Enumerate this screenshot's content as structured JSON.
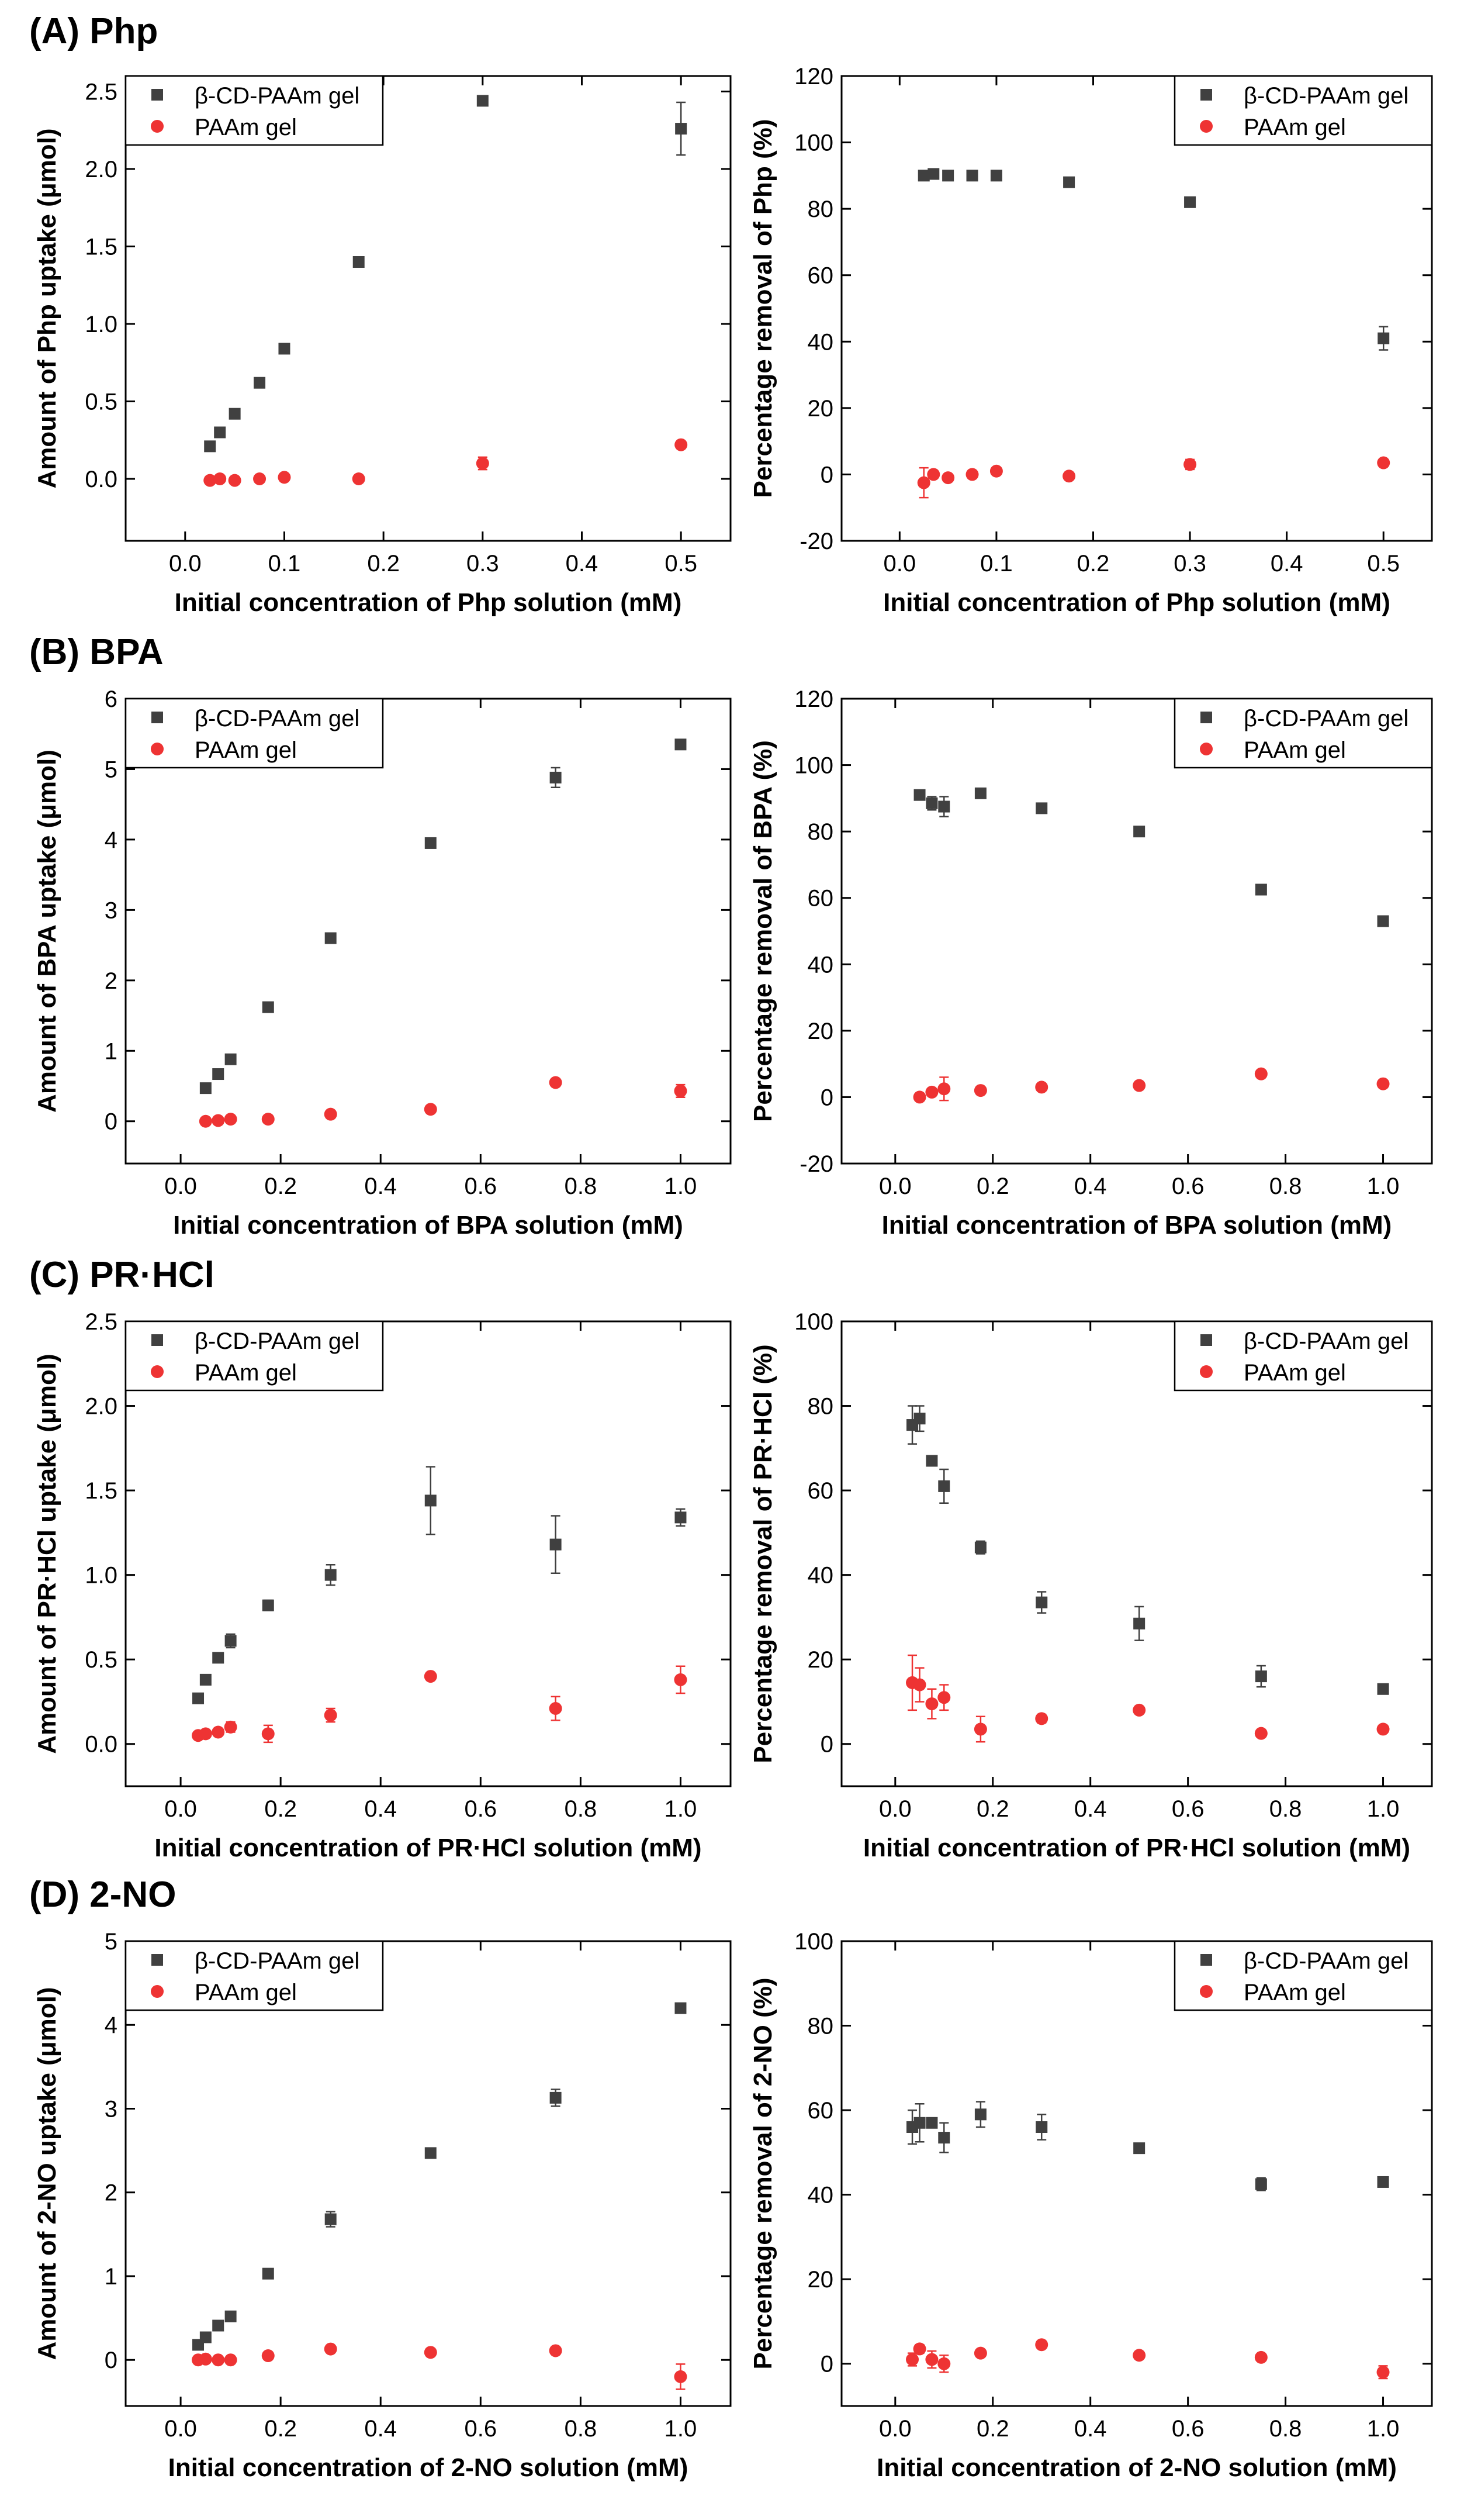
{
  "sections": [
    {
      "label": "(A) Php"
    },
    {
      "label": "(B) BPA"
    },
    {
      "label": "(C) PR·HCl"
    },
    {
      "label": "(D) 2-NO"
    }
  ],
  "colors": {
    "cd_gel": "#404040",
    "paam_gel": "#ee3333"
  },
  "legend": {
    "series1": "β-CD-PAAm gel",
    "series2": "PAAm gel"
  },
  "chart_data": [
    {
      "type": "scatter",
      "xlabel": "Initial concentration of Php solution (mM)",
      "ylabel": "Amount of Php uptake (μmol)",
      "xlim": [
        -0.06,
        0.55
      ],
      "ylim": [
        -0.4,
        2.6
      ],
      "xticks": [
        "0.0",
        "0.1",
        "0.2",
        "0.3",
        "0.4",
        "0.5"
      ],
      "yticks": [
        "0.0",
        "0.5",
        "1.0",
        "1.5",
        "2.0",
        "2.5"
      ],
      "legend_position": "top-left",
      "series": [
        {
          "name": "β-CD-PAAm gel",
          "marker": "square",
          "x": [
            0.025,
            0.035,
            0.05,
            0.075,
            0.1,
            0.175,
            0.3,
            0.5
          ],
          "y": [
            0.21,
            0.3,
            0.42,
            0.62,
            0.84,
            1.4,
            2.44,
            2.26
          ],
          "err": [
            0.01,
            0.01,
            0.01,
            0.01,
            0.01,
            0.01,
            0.03,
            0.17
          ]
        },
        {
          "name": "PAAm gel",
          "marker": "circle",
          "x": [
            0.025,
            0.035,
            0.05,
            0.075,
            0.1,
            0.175,
            0.3,
            0.5
          ],
          "y": [
            -0.01,
            0.0,
            -0.01,
            0.0,
            0.01,
            0.0,
            0.1,
            0.22
          ],
          "err": [
            0.01,
            0.01,
            0.01,
            0.01,
            0.01,
            0.01,
            0.04,
            0.01
          ]
        }
      ]
    },
    {
      "type": "scatter",
      "xlabel": "Initial concentration of Php solution (mM)",
      "ylabel": "Percentage removal of Php (%)",
      "xlim": [
        -0.06,
        0.55
      ],
      "ylim": [
        -20,
        120
      ],
      "xticks": [
        "0.0",
        "0.1",
        "0.2",
        "0.3",
        "0.4",
        "0.5"
      ],
      "yticks": [
        "-20",
        "0",
        "20",
        "40",
        "60",
        "80",
        "100",
        "120"
      ],
      "legend_position": "top-right",
      "series": [
        {
          "name": "β-CD-PAAm gel",
          "marker": "square",
          "x": [
            0.025,
            0.035,
            0.05,
            0.075,
            0.1,
            0.175,
            0.3,
            0.5
          ],
          "y": [
            90,
            90.5,
            90,
            90,
            90,
            88,
            82,
            41
          ],
          "err": [
            0.5,
            0.5,
            0.5,
            0.5,
            0.5,
            0.5,
            0.5,
            3.5
          ]
        },
        {
          "name": "PAAm gel",
          "marker": "circle",
          "x": [
            0.025,
            0.035,
            0.05,
            0.075,
            0.1,
            0.175,
            0.3,
            0.5
          ],
          "y": [
            -2.5,
            0,
            -1,
            0,
            1,
            -0.5,
            3,
            3.5
          ],
          "err": [
            4.5,
            1,
            0.5,
            0.5,
            1,
            0.5,
            1.5,
            0.5
          ]
        }
      ]
    },
    {
      "type": "scatter",
      "xlabel": "Initial concentration of BPA solution (mM)",
      "ylabel": "Amount of BPA uptake (μmol)",
      "xlim": [
        -0.11,
        1.1
      ],
      "ylim": [
        -0.6,
        6
      ],
      "xticks": [
        "0.0",
        "0.2",
        "0.4",
        "0.6",
        "0.8",
        "1.0"
      ],
      "yticks": [
        "0",
        "1",
        "2",
        "3",
        "4",
        "5",
        "6"
      ],
      "legend_position": "top-left",
      "series": [
        {
          "name": "β-CD-PAAm gel",
          "marker": "square",
          "x": [
            0.05,
            0.075,
            0.1,
            0.175,
            0.3,
            0.5,
            0.75,
            1.0
          ],
          "y": [
            0.47,
            0.67,
            0.88,
            1.62,
            2.6,
            3.95,
            4.88,
            5.35
          ],
          "err": [
            0.02,
            0.02,
            0.02,
            0.02,
            0.02,
            0.07,
            0.14,
            0.03
          ]
        },
        {
          "name": "PAAm gel",
          "marker": "circle",
          "x": [
            0.05,
            0.075,
            0.1,
            0.175,
            0.3,
            0.5,
            0.75,
            1.0
          ],
          "y": [
            0.0,
            0.01,
            0.03,
            0.03,
            0.1,
            0.17,
            0.55,
            0.43
          ],
          "err": [
            0.02,
            0.02,
            0.04,
            0.03,
            0.03,
            0.03,
            0.04,
            0.09
          ]
        }
      ]
    },
    {
      "type": "scatter",
      "xlabel": "Initial concentration of BPA solution (mM)",
      "ylabel": "Percentage removal of BPA (%)",
      "xlim": [
        -0.11,
        1.1
      ],
      "ylim": [
        -20,
        120
      ],
      "xticks": [
        "0.0",
        "0.2",
        "0.4",
        "0.6",
        "0.8",
        "1.0"
      ],
      "yticks": [
        "-20",
        "0",
        "20",
        "40",
        "60",
        "80",
        "100",
        "120"
      ],
      "legend_position": "top-right",
      "series": [
        {
          "name": "β-CD-PAAm gel",
          "marker": "square",
          "x": [
            0.05,
            0.075,
            0.1,
            0.175,
            0.3,
            0.5,
            0.75,
            1.0
          ],
          "y": [
            91,
            88.5,
            87.5,
            91.5,
            87,
            80,
            62.5,
            53
          ],
          "err": [
            1,
            2,
            3,
            1,
            1,
            1,
            1.5,
            0.5
          ]
        },
        {
          "name": "PAAm gel",
          "marker": "circle",
          "x": [
            0.05,
            0.075,
            0.1,
            0.175,
            0.3,
            0.5,
            0.75,
            1.0
          ],
          "y": [
            0,
            1.5,
            2.5,
            2,
            3,
            3.5,
            7,
            4
          ],
          "err": [
            0.5,
            1,
            3.5,
            1,
            0.5,
            0.5,
            1,
            0.5
          ]
        }
      ]
    },
    {
      "type": "scatter",
      "xlabel": "Initial concentration of PR·HCl solution (mM)",
      "ylabel": "Amount of PR·HCl uptake (μmol)",
      "xlim": [
        -0.11,
        1.1
      ],
      "ylim": [
        -0.25,
        2.5
      ],
      "xticks": [
        "0.0",
        "0.2",
        "0.4",
        "0.6",
        "0.8",
        "1.0"
      ],
      "yticks": [
        "0.0",
        "0.5",
        "1.0",
        "1.5",
        "2.0",
        "2.5"
      ],
      "legend_position": "top-left",
      "series": [
        {
          "name": "β-CD-PAAm gel",
          "marker": "square",
          "x": [
            0.035,
            0.05,
            0.075,
            0.1,
            0.175,
            0.3,
            0.5,
            0.75,
            1.0
          ],
          "y": [
            0.27,
            0.38,
            0.51,
            0.61,
            0.82,
            1.0,
            1.44,
            1.18,
            1.34
          ],
          "err": [
            0.01,
            0.01,
            0.01,
            0.04,
            0.03,
            0.06,
            0.2,
            0.17,
            0.05
          ]
        },
        {
          "name": "PAAm gel",
          "marker": "circle",
          "x": [
            0.035,
            0.05,
            0.075,
            0.1,
            0.175,
            0.3,
            0.5,
            0.75,
            1.0
          ],
          "y": [
            0.05,
            0.06,
            0.07,
            0.1,
            0.06,
            0.17,
            0.4,
            0.21,
            0.38
          ],
          "err": [
            0.01,
            0.02,
            0.02,
            0.03,
            0.05,
            0.04,
            0.02,
            0.07,
            0.08
          ]
        }
      ]
    },
    {
      "type": "scatter",
      "xlabel": "Initial concentration of PR·HCl solution (mM)",
      "ylabel": "Percentage removal of PR·HCl (%)",
      "xlim": [
        -0.11,
        1.1
      ],
      "ylim": [
        -10,
        100
      ],
      "xticks": [
        "0.0",
        "0.2",
        "0.4",
        "0.6",
        "0.8",
        "1.0"
      ],
      "yticks": [
        "0",
        "20",
        "40",
        "60",
        "80",
        "100"
      ],
      "legend_position": "top-right",
      "series": [
        {
          "name": "β-CD-PAAm gel",
          "marker": "square",
          "x": [
            0.035,
            0.05,
            0.075,
            0.1,
            0.175,
            0.3,
            0.5,
            0.75,
            1.0
          ],
          "y": [
            75.5,
            77,
            67,
            61,
            46.5,
            33.5,
            28.5,
            16,
            13
          ],
          "err": [
            4.5,
            3,
            0.5,
            4,
            1.5,
            2.5,
            4,
            2.5,
            0.5
          ]
        },
        {
          "name": "PAAm gel",
          "marker": "circle",
          "x": [
            0.035,
            0.05,
            0.075,
            0.1,
            0.175,
            0.3,
            0.5,
            0.75,
            1.0
          ],
          "y": [
            14.5,
            14,
            9.5,
            11,
            3.5,
            6,
            8,
            2.5,
            3.5
          ],
          "err": [
            6.5,
            4,
            3.5,
            3,
            3,
            1,
            0.5,
            0.5,
            0.5
          ]
        }
      ]
    },
    {
      "type": "scatter",
      "xlabel": "Initial concentration of 2-NO solution (mM)",
      "ylabel": "Amount of 2-NO uptake (μmol)",
      "xlim": [
        -0.11,
        1.1
      ],
      "ylim": [
        -0.55,
        5
      ],
      "xticks": [
        "0.0",
        "0.2",
        "0.4",
        "0.6",
        "0.8",
        "1.0"
      ],
      "yticks": [
        "0",
        "1",
        "2",
        "3",
        "4",
        "5"
      ],
      "legend_position": "top-left",
      "series": [
        {
          "name": "β-CD-PAAm gel",
          "marker": "square",
          "x": [
            0.035,
            0.05,
            0.075,
            0.1,
            0.175,
            0.3,
            0.5,
            0.75,
            1.0
          ],
          "y": [
            0.18,
            0.27,
            0.41,
            0.52,
            1.03,
            1.68,
            2.47,
            3.13,
            4.2
          ],
          "err": [
            0.01,
            0.01,
            0.01,
            0.01,
            0.02,
            0.09,
            0.02,
            0.1,
            0.02
          ]
        },
        {
          "name": "PAAm gel",
          "marker": "circle",
          "x": [
            0.035,
            0.05,
            0.075,
            0.1,
            0.175,
            0.3,
            0.5,
            0.75,
            1.0
          ],
          "y": [
            0.0,
            0.01,
            0.0,
            0.0,
            0.05,
            0.13,
            0.09,
            0.11,
            -0.2
          ],
          "err": [
            0.02,
            0.02,
            0.02,
            0.02,
            0.02,
            0.02,
            0.02,
            0.03,
            0.15
          ]
        }
      ]
    },
    {
      "type": "scatter",
      "xlabel": "Initial concentration of 2-NO solution (mM)",
      "ylabel": "Percentage removal of 2-NO (%)",
      "xlim": [
        -0.11,
        1.1
      ],
      "ylim": [
        -10,
        100
      ],
      "xticks": [
        "0.0",
        "0.2",
        "0.4",
        "0.6",
        "0.8",
        "1.0"
      ],
      "yticks": [
        "0",
        "20",
        "40",
        "60",
        "80",
        "100"
      ],
      "legend_position": "top-right",
      "series": [
        {
          "name": "β-CD-PAAm gel",
          "marker": "square",
          "x": [
            0.035,
            0.05,
            0.075,
            0.1,
            0.175,
            0.3,
            0.5,
            0.75,
            1.0
          ],
          "y": [
            56,
            57,
            57,
            53.5,
            59,
            56,
            51,
            42.5,
            43
          ],
          "err": [
            4,
            4.5,
            0.5,
            3.5,
            3,
            3,
            0.5,
            1.5,
            0.5
          ]
        },
        {
          "name": "PAAm gel",
          "marker": "circle",
          "x": [
            0.035,
            0.05,
            0.075,
            0.1,
            0.175,
            0.3,
            0.5,
            0.75,
            1.0
          ],
          "y": [
            1,
            3.5,
            1,
            0,
            2.5,
            4.5,
            2,
            1.5,
            -2
          ],
          "err": [
            1.5,
            1,
            2,
            2,
            0.5,
            0.5,
            0.5,
            0.5,
            1.5
          ]
        }
      ]
    }
  ]
}
